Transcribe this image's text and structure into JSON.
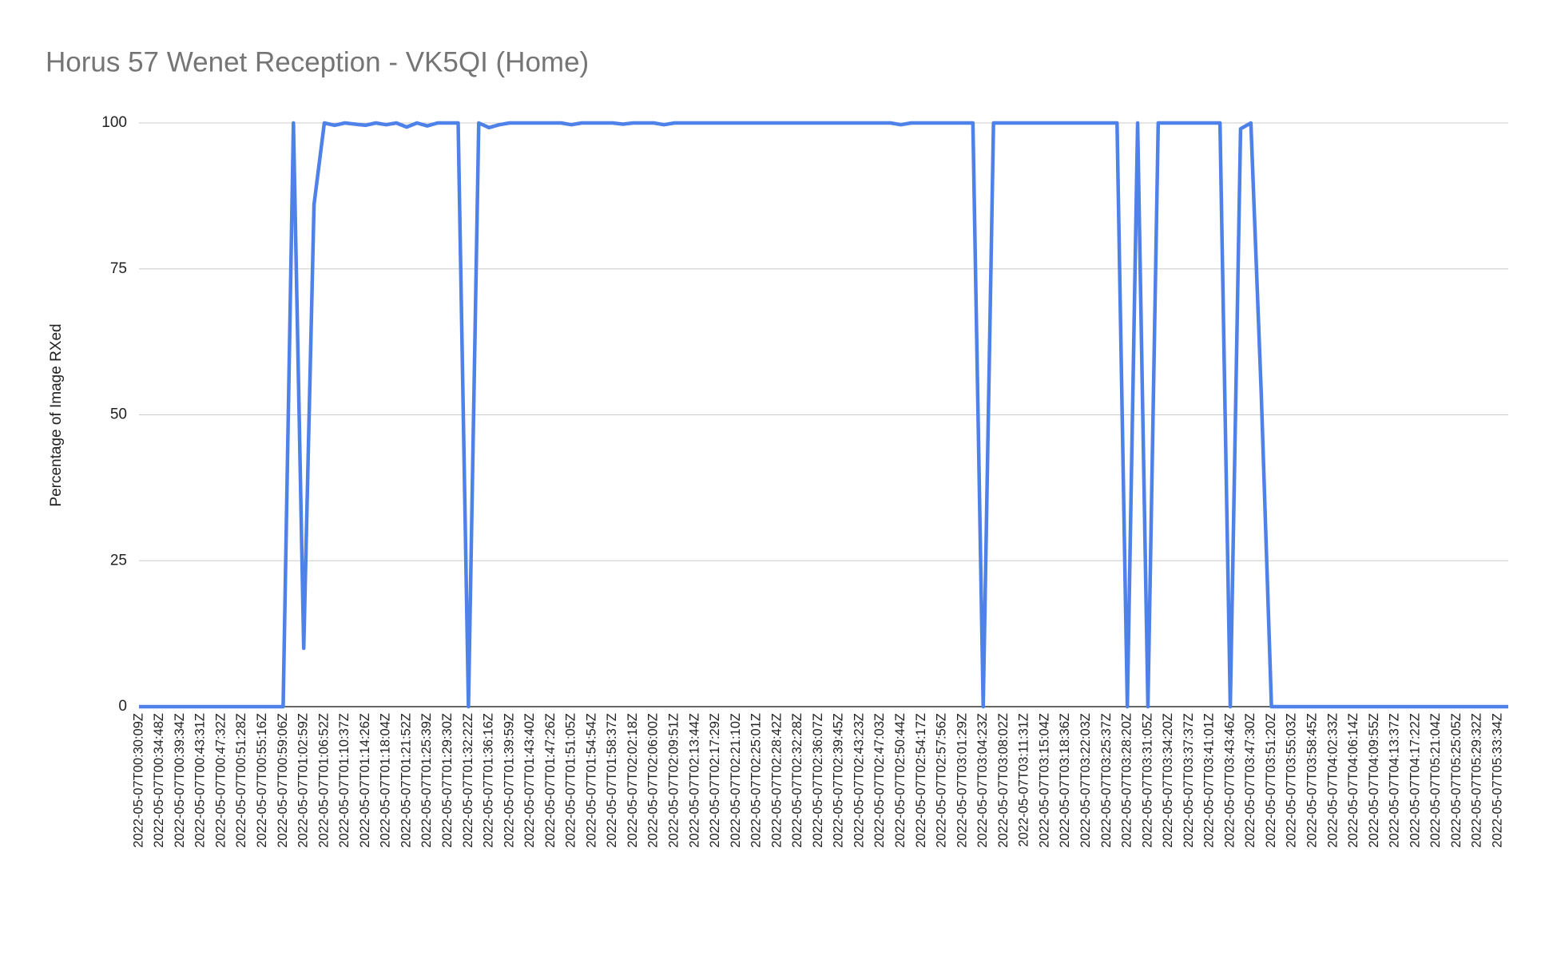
{
  "chart_data": {
    "type": "line",
    "title": "Horus 57 Wenet Reception - VK5QI (Home)",
    "y_label": "Percentage of Image RXed",
    "ylim": [
      0,
      100
    ],
    "yticks": [
      0,
      25,
      50,
      75,
      100
    ],
    "grid": true,
    "categories": [
      "2022-05-07T00:30:09Z",
      null,
      "2022-05-07T00:34:48Z",
      null,
      "2022-05-07T00:39:34Z",
      null,
      "2022-05-07T00:43:31Z",
      null,
      "2022-05-07T00:47:32Z",
      null,
      "2022-05-07T00:51:28Z",
      null,
      "2022-05-07T00:55:16Z",
      null,
      "2022-05-07T00:59:06Z",
      null,
      "2022-05-07T01:02:59Z",
      null,
      "2022-05-07T01:06:52Z",
      null,
      "2022-05-07T01:10:37Z",
      null,
      "2022-05-07T01:14:26Z",
      null,
      "2022-05-07T01:18:04Z",
      null,
      "2022-05-07T01:21:52Z",
      null,
      "2022-05-07T01:25:39Z",
      null,
      "2022-05-07T01:29:30Z",
      null,
      "2022-05-07T01:32:22Z",
      null,
      "2022-05-07T01:36:16Z",
      null,
      "2022-05-07T01:39:59Z",
      null,
      "2022-05-07T01:43:40Z",
      null,
      "2022-05-07T01:47:26Z",
      null,
      "2022-05-07T01:51:05Z",
      null,
      "2022-05-07T01:54:54Z",
      null,
      "2022-05-07T01:58:37Z",
      null,
      "2022-05-07T02:02:18Z",
      null,
      "2022-05-07T02:06:00Z",
      null,
      "2022-05-07T02:09:51Z",
      null,
      "2022-05-07T02:13:44Z",
      null,
      "2022-05-07T02:17:29Z",
      null,
      "2022-05-07T02:21:10Z",
      null,
      "2022-05-07T02:25:01Z",
      null,
      "2022-05-07T02:28:42Z",
      null,
      "2022-05-07T02:32:28Z",
      null,
      "2022-05-07T02:36:07Z",
      null,
      "2022-05-07T02:39:45Z",
      null,
      "2022-05-07T02:43:23Z",
      null,
      "2022-05-07T02:47:03Z",
      null,
      "2022-05-07T02:50:44Z",
      null,
      "2022-05-07T02:54:17Z",
      null,
      "2022-05-07T02:57:56Z",
      null,
      "2022-05-07T03:01:29Z",
      null,
      "2022-05-07T03:04:23Z",
      null,
      "2022-05-07T03:08:02Z",
      null,
      "2022-05-07T03:11:31Z",
      null,
      "2022-05-07T03:15:04Z",
      null,
      "2022-05-07T03:18:36Z",
      null,
      "2022-05-07T03:22:03Z",
      null,
      "2022-05-07T03:25:37Z",
      null,
      "2022-05-07T03:28:20Z",
      null,
      "2022-05-07T03:31:05Z",
      null,
      "2022-05-07T03:34:20Z",
      null,
      "2022-05-07T03:37:37Z",
      null,
      "2022-05-07T03:41:01Z",
      null,
      "2022-05-07T03:43:46Z",
      null,
      "2022-05-07T03:47:30Z",
      null,
      "2022-05-07T03:51:20Z",
      null,
      "2022-05-07T03:55:03Z",
      null,
      "2022-05-07T03:58:45Z",
      null,
      "2022-05-07T04:02:33Z",
      null,
      "2022-05-07T04:06:14Z",
      null,
      "2022-05-07T04:09:55Z",
      null,
      "2022-05-07T04:13:37Z",
      null,
      "2022-05-07T04:17:22Z",
      null,
      "2022-05-07T05:21:04Z",
      null,
      "2022-05-07T05:25:05Z",
      null,
      "2022-05-07T05:29:32Z",
      null,
      "2022-05-07T05:33:34Z",
      null
    ],
    "series": [
      {
        "name": "Percentage of Image RXed",
        "color": "#4f82e8",
        "values": [
          0,
          0,
          0,
          0,
          0,
          0,
          0,
          0,
          0,
          0,
          0,
          0,
          0,
          0,
          0,
          100,
          10,
          86,
          100,
          99.6,
          100,
          99.8,
          99.6,
          100,
          99.7,
          100,
          99.3,
          100,
          99.5,
          100,
          100,
          100,
          0,
          100,
          99.2,
          99.7,
          100,
          100,
          100,
          100,
          100,
          100,
          99.7,
          100,
          100,
          100,
          100,
          99.8,
          100,
          100,
          100,
          99.7,
          100,
          100,
          100,
          100,
          100,
          100,
          100,
          100,
          100,
          100,
          100,
          100,
          100,
          100,
          100,
          100,
          100,
          100,
          100,
          100,
          100,
          100,
          99.7,
          100,
          100,
          100,
          100,
          100,
          100,
          100,
          0,
          100,
          100,
          100,
          100,
          100,
          100,
          100,
          100,
          100,
          100,
          100,
          100,
          100,
          0,
          100,
          0,
          100,
          100,
          100,
          100,
          100,
          100,
          100,
          0,
          99,
          100,
          54,
          0,
          0,
          0,
          0,
          0,
          0,
          0,
          0,
          0,
          0,
          0,
          0,
          0,
          0,
          0,
          0,
          0,
          0,
          0,
          0,
          0,
          0,
          0,
          0
        ]
      }
    ]
  }
}
